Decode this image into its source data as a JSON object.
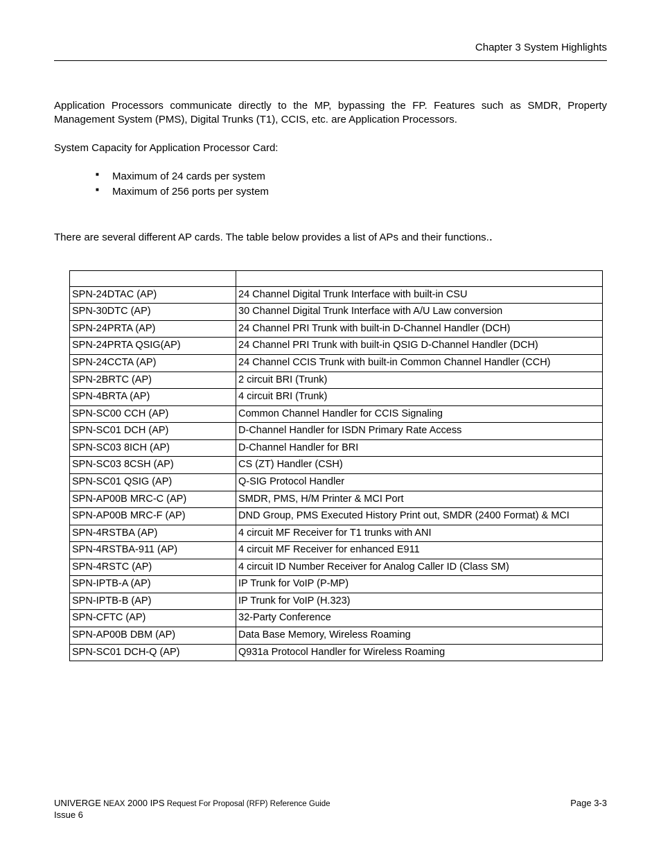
{
  "header": {
    "chapter": "Chapter 3   System Highlights"
  },
  "body": {
    "para1": "Application Processors communicate directly to the MP, bypassing the FP. Features such as SMDR, Property Management System (PMS), Digital Trunks (T1), CCIS, etc. are Application Processors.",
    "para2": "System Capacity for Application Processor Card:",
    "bullets": [
      "Maximum of 24 cards per system",
      "Maximum of 256 ports per system"
    ],
    "para3": "There are several different AP cards. The table below provides a list of APs and their functions."
  },
  "table": {
    "rows": [
      [
        "SPN-24DTAC (AP)",
        "24 Channel Digital Trunk Interface with built-in CSU"
      ],
      [
        "SPN-30DTC (AP)",
        "30 Channel Digital Trunk Interface with A/U Law conversion"
      ],
      [
        "SPN-24PRTA (AP)",
        "24 Channel PRI Trunk with built-in D-Channel Handler (DCH)"
      ],
      [
        "SPN-24PRTA QSIG(AP)",
        "24 Channel PRI Trunk with built-in QSIG D-Channel Handler (DCH)"
      ],
      [
        "SPN-24CCTA (AP)",
        "24 Channel CCIS Trunk with built-in Common Channel Handler (CCH)"
      ],
      [
        "SPN-2BRTC (AP)",
        "2 circuit BRI (Trunk)"
      ],
      [
        "SPN-4BRTA (AP)",
        "4 circuit BRI (Trunk)"
      ],
      [
        "SPN-SC00 CCH (AP)",
        "Common Channel Handler for CCIS Signaling"
      ],
      [
        "SPN-SC01 DCH (AP)",
        "D-Channel Handler for ISDN Primary Rate Access"
      ],
      [
        "SPN-SC03 8ICH (AP)",
        "D-Channel Handler for BRI"
      ],
      [
        "SPN-SC03 8CSH (AP)",
        "CS (ZT) Handler (CSH)"
      ],
      [
        "SPN-SC01 QSIG (AP)",
        "Q-SIG Protocol Handler"
      ],
      [
        "SPN-AP00B MRC-C (AP)",
        "SMDR, PMS, H/M Printer & MCI Port"
      ],
      [
        "SPN-AP00B MRC-F (AP)",
        "DND Group, PMS Executed History Print out, SMDR (2400 Format) & MCI"
      ],
      [
        "SPN-4RSTBA (AP)",
        "4 circuit MF Receiver for T1 trunks with ANI"
      ],
      [
        "SPN-4RSTBA-911 (AP)",
        "4 circuit MF Receiver for enhanced E911"
      ],
      [
        "SPN-4RSTC (AP)",
        "4 circuit ID Number Receiver for Analog Caller ID (Class SM)"
      ],
      [
        "SPN-IPTB-A (AP)",
        "IP Trunk for VoIP (P-MP)"
      ],
      [
        "SPN-IPTB-B (AP)",
        "IP Trunk for VoIP (H.323)"
      ],
      [
        "SPN-CFTC (AP)",
        "32-Party Conference"
      ],
      [
        "SPN-AP00B DBM (AP)",
        "Data Base Memory, Wireless Roaming"
      ],
      [
        "SPN-SC01 DCH-Q (AP)",
        "Q931a Protocol Handler for Wireless Roaming"
      ]
    ]
  },
  "footer": {
    "line1_left_a": "UNIVERGE",
    "line1_left_b": " NEAX",
    "line1_left_c": " 2000 IPS",
    "line1_left_d": " Request For Proposal (RFP) Reference Guide",
    "line1_right": "Page 3-3",
    "line2_left": "Issue 6"
  }
}
